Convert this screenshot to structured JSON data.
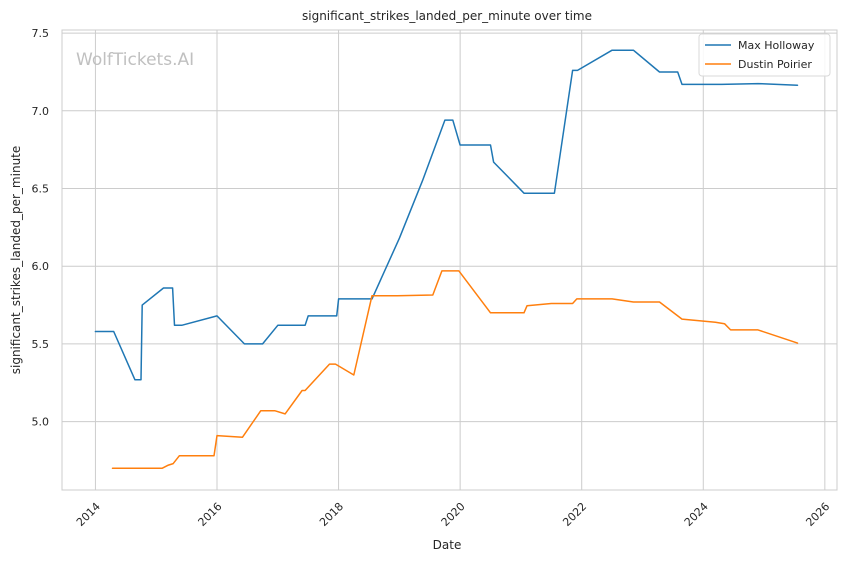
{
  "chart_data": {
    "type": "line",
    "title": "significant_strikes_landed_per_minute over time",
    "xlabel": "Date",
    "ylabel": "significant_strikes_landed_per_minute",
    "watermark": "WolfTickets.AI",
    "xlim": [
      2013.45,
      2026.2
    ],
    "ylim": [
      4.56,
      7.52
    ],
    "x_ticks": [
      2014,
      2016,
      2018,
      2020,
      2022,
      2024,
      2026
    ],
    "x_tick_labels": [
      "2014",
      "2016",
      "2018",
      "2020",
      "2022",
      "2024",
      "2026"
    ],
    "y_ticks": [
      5.0,
      5.5,
      6.0,
      6.5,
      7.0,
      7.5
    ],
    "y_tick_labels": [
      "5.0",
      "5.5",
      "6.0",
      "6.5",
      "7.0",
      "7.5"
    ],
    "grid": true,
    "legend_position": "top-right",
    "series": [
      {
        "name": "Max Holloway",
        "color": "#1f77b4",
        "points": [
          [
            2014.0,
            5.58
          ],
          [
            2014.3,
            5.58
          ],
          [
            2014.65,
            5.27
          ],
          [
            2014.75,
            5.27
          ],
          [
            2014.77,
            5.75
          ],
          [
            2015.12,
            5.86
          ],
          [
            2015.27,
            5.86
          ],
          [
            2015.3,
            5.62
          ],
          [
            2015.42,
            5.62
          ],
          [
            2016.0,
            5.68
          ],
          [
            2016.45,
            5.5
          ],
          [
            2016.75,
            5.5
          ],
          [
            2017.0,
            5.62
          ],
          [
            2017.45,
            5.62
          ],
          [
            2017.5,
            5.68
          ],
          [
            2017.97,
            5.68
          ],
          [
            2018.0,
            5.79
          ],
          [
            2018.55,
            5.79
          ],
          [
            2019.0,
            6.18
          ],
          [
            2019.38,
            6.55
          ],
          [
            2019.75,
            6.94
          ],
          [
            2019.88,
            6.94
          ],
          [
            2020.0,
            6.78
          ],
          [
            2020.5,
            6.78
          ],
          [
            2020.55,
            6.67
          ],
          [
            2021.05,
            6.47
          ],
          [
            2021.55,
            6.47
          ],
          [
            2021.85,
            7.26
          ],
          [
            2021.93,
            7.26
          ],
          [
            2022.5,
            7.39
          ],
          [
            2022.85,
            7.39
          ],
          [
            2023.28,
            7.25
          ],
          [
            2023.58,
            7.25
          ],
          [
            2023.65,
            7.17
          ],
          [
            2024.3,
            7.17
          ],
          [
            2024.9,
            7.175
          ],
          [
            2025.55,
            7.165
          ]
        ]
      },
      {
        "name": "Dustin Poirier",
        "color": "#ff7f0e",
        "points": [
          [
            2014.28,
            4.7
          ],
          [
            2015.1,
            4.7
          ],
          [
            2015.2,
            4.72
          ],
          [
            2015.28,
            4.73
          ],
          [
            2015.38,
            4.78
          ],
          [
            2015.95,
            4.78
          ],
          [
            2016.0,
            4.91
          ],
          [
            2016.42,
            4.9
          ],
          [
            2016.72,
            5.07
          ],
          [
            2016.95,
            5.07
          ],
          [
            2017.12,
            5.05
          ],
          [
            2017.4,
            5.2
          ],
          [
            2017.45,
            5.2
          ],
          [
            2017.85,
            5.37
          ],
          [
            2017.95,
            5.37
          ],
          [
            2018.25,
            5.3
          ],
          [
            2018.55,
            5.81
          ],
          [
            2018.97,
            5.81
          ],
          [
            2019.55,
            5.815
          ],
          [
            2019.7,
            5.97
          ],
          [
            2019.98,
            5.97
          ],
          [
            2020.5,
            5.7
          ],
          [
            2021.05,
            5.7
          ],
          [
            2021.1,
            5.745
          ],
          [
            2021.5,
            5.76
          ],
          [
            2021.85,
            5.76
          ],
          [
            2021.92,
            5.79
          ],
          [
            2022.5,
            5.79
          ],
          [
            2022.85,
            5.77
          ],
          [
            2023.28,
            5.77
          ],
          [
            2023.65,
            5.66
          ],
          [
            2024.2,
            5.64
          ],
          [
            2024.35,
            5.63
          ],
          [
            2024.45,
            5.59
          ],
          [
            2024.9,
            5.59
          ],
          [
            2025.55,
            5.505
          ]
        ]
      }
    ]
  }
}
